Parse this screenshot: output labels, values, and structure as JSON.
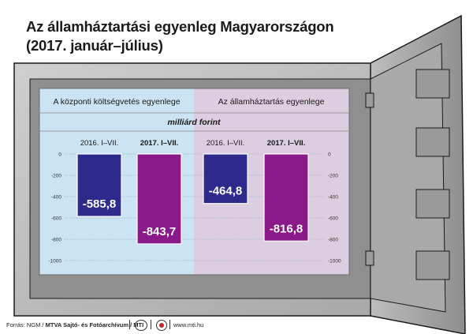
{
  "title_lines": [
    "Az államháztartási egyenleg Magyarországon",
    "(2017. január–július)"
  ],
  "footer": {
    "source_prefix": "Forrás: NGM /",
    "source_bold": "MTVA Sajtó- és Fotóarchívum / MTI",
    "url": "www.mti.hu"
  },
  "colors": {
    "bar_2016": "#2e2a8c",
    "bar_2017": "#8a1a8a",
    "panel_left": "#cbe3f2",
    "panel_right": "#dccde0",
    "safe_body": "#b4b4b4"
  },
  "chart_data": {
    "type": "bar",
    "unit_label": "milliárd forint",
    "ylim": [
      -1000,
      0
    ],
    "y_ticks": [
      0,
      -200,
      -400,
      -600,
      -800,
      -1000
    ],
    "groups": [
      {
        "name": "A központi költségvetés egyenlege",
        "categories": [
          "2016. I–VII.",
          "2017. I–VII."
        ],
        "values": [
          -585.8,
          -843.7
        ],
        "value_labels": [
          "-585,8",
          "-843,7"
        ]
      },
      {
        "name": "Az államháztartás egyenlege",
        "categories": [
          "2016. I–VII.",
          "2017. I–VII."
        ],
        "values": [
          -464.8,
          -816.8
        ],
        "value_labels": [
          "-464,8",
          "-816,8"
        ]
      }
    ]
  }
}
